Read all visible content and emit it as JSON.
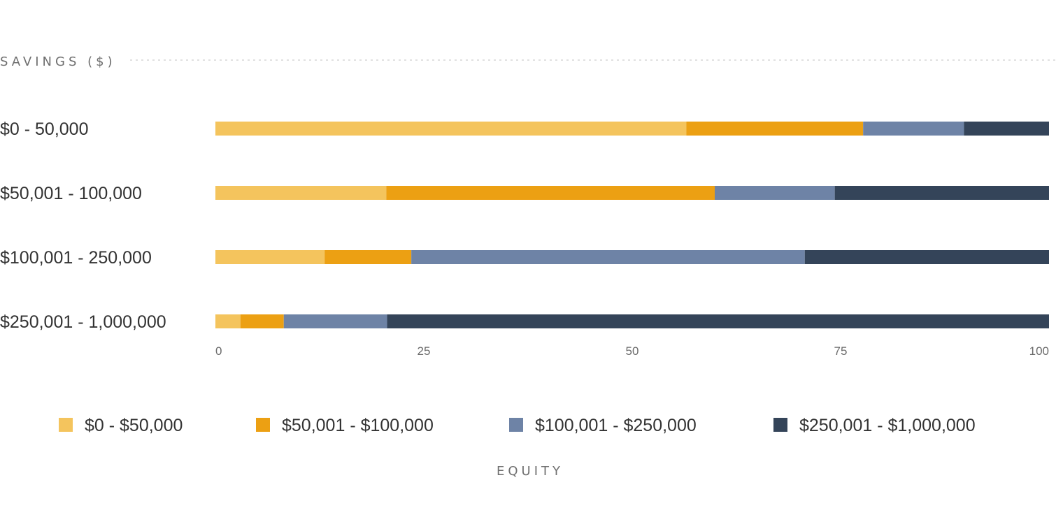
{
  "chart_data": {
    "type": "bar",
    "orientation": "horizontal",
    "stacked": true,
    "ylabel": "SAVINGS ($)",
    "xlabel": "EQUITY",
    "xlim": [
      0,
      100
    ],
    "xticks": [
      0,
      25,
      50,
      75,
      100
    ],
    "categories": [
      "$0 - 50,000",
      "$50,001 - 100,000",
      "$100,001 - 250,000",
      "$250,001 - 1,000,000"
    ],
    "series": [
      {
        "name": "$0 - $50,000",
        "color": "#F4C45D",
        "values": [
          56.5,
          20.5,
          13.1,
          3.0
        ]
      },
      {
        "name": "$50,001 - $100,000",
        "color": "#ECA013",
        "values": [
          21.2,
          39.4,
          10.4,
          5.2
        ]
      },
      {
        "name": "$100,001 - $250,000",
        "color": "#6E83A6",
        "values": [
          12.1,
          14.4,
          47.2,
          12.4
        ]
      },
      {
        "name": "$250,001 - $1,000,000",
        "color": "#344459",
        "values": [
          10.2,
          25.7,
          29.3,
          79.4
        ]
      }
    ],
    "legend_position": "bottom",
    "grid": false
  }
}
